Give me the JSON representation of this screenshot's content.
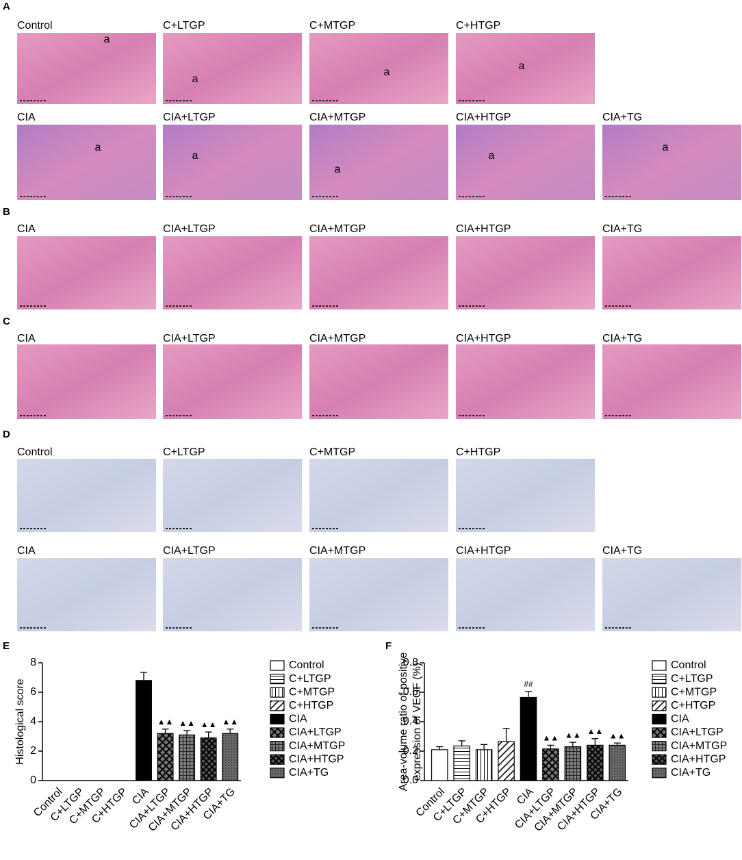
{
  "panels": [
    {
      "letter": "A",
      "rows": [
        [
          "Control",
          "C+LTGP",
          "C+MTGP",
          "C+HTGP"
        ],
        [
          "CIA",
          "CIA+LTGP",
          "CIA+MTGP",
          "CIA+HTGP",
          "CIA+TG"
        ]
      ]
    },
    {
      "letter": "B",
      "rows": [
        [
          "CIA",
          "CIA+LTGP",
          "CIA+MTGP",
          "CIA+HTGP",
          "CIA+TG"
        ]
      ]
    },
    {
      "letter": "C",
      "rows": [
        [
          "CIA",
          "CIA+LTGP",
          "CIA+MTGP",
          "CIA+HTGP",
          "CIA+TG"
        ]
      ]
    },
    {
      "letter": "D",
      "rows": [
        [
          "Control",
          "C+LTGP",
          "C+MTGP",
          "C+HTGP"
        ],
        [
          "CIA",
          "CIA+LTGP",
          "CIA+MTGP",
          "CIA+HTGP",
          "CIA+TG"
        ]
      ]
    }
  ],
  "joint_label": "a",
  "chart_data": [
    {
      "type": "bar",
      "panel_letter": "E",
      "ylabel": [
        "Histological score"
      ],
      "categories": [
        "Control",
        "C+LTGP",
        "C+MTGP",
        "C+HTGP",
        "CIA",
        "CIA+LTGP",
        "CIA+MTGP",
        "CIA+HTGP",
        "CIA+TG"
      ],
      "values": [
        0,
        0,
        0,
        0,
        6.8,
        3.2,
        3.1,
        2.9,
        3.2
      ],
      "errors": [
        0,
        0,
        0,
        0,
        0.55,
        0.3,
        0.3,
        0.4,
        0.3
      ],
      "annotations": [
        null,
        null,
        null,
        null,
        null,
        "▲▲",
        "▲▲",
        "▲▲",
        "▲▲"
      ],
      "patterns": [
        "none",
        "hstripe",
        "vstripe",
        "diag",
        "solid",
        "crosshatch",
        "grid",
        "crossdark",
        "dots"
      ],
      "ylim": [
        0,
        8
      ],
      "yticks": [
        0,
        2,
        4,
        6,
        8
      ]
    },
    {
      "type": "bar",
      "panel_letter": "F",
      "ylabel": [
        "Area-volume ratio of positive",
        "expression of VEGF (%)"
      ],
      "categories": [
        "Control",
        "C+LTGP",
        "C+MTGP",
        "C+HTGP",
        "CIA",
        "CIA+LTGP",
        "CIA+MTGP",
        "CIA+HTGP",
        "CIA+TG"
      ],
      "values": [
        0.21,
        0.235,
        0.21,
        0.265,
        0.565,
        0.215,
        0.23,
        0.24,
        0.24
      ],
      "errors": [
        0.02,
        0.035,
        0.035,
        0.09,
        0.04,
        0.025,
        0.03,
        0.045,
        0.015
      ],
      "annotations": [
        null,
        null,
        null,
        null,
        "##",
        "▲▲",
        "▲▲",
        "▲▲",
        "▲▲"
      ],
      "patterns": [
        "none",
        "hstripe",
        "vstripe",
        "diag",
        "solid",
        "crosshatch",
        "grid",
        "crossdark",
        "dots"
      ],
      "ylim": [
        0,
        0.8
      ],
      "yticks": [
        {
          "value": 0,
          "label": "0.0"
        },
        0.2,
        0.4,
        0.6,
        0.8
      ]
    }
  ]
}
